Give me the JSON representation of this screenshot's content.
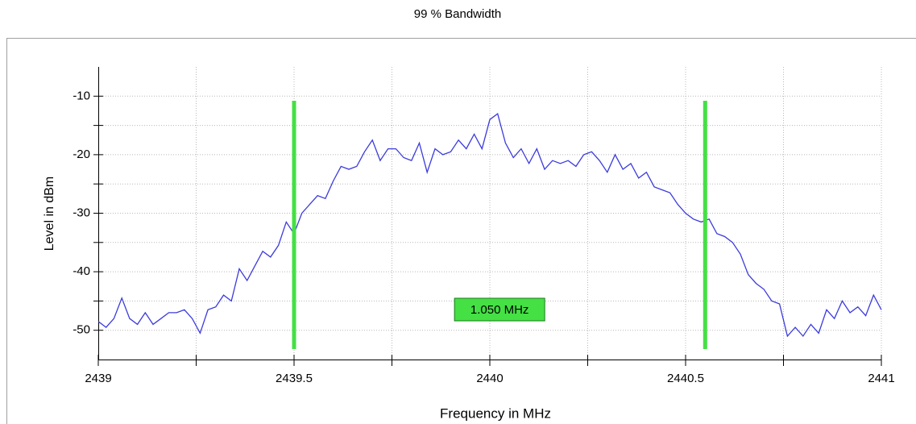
{
  "chart_data": {
    "type": "line",
    "title": "99 % Bandwidth",
    "xlabel": "Frequency in MHz",
    "ylabel": "Level in dBm",
    "xlim": [
      2439,
      2441
    ],
    "ylim": [
      -55,
      -5
    ],
    "xticks": [
      2439,
      2439.5,
      2440,
      2440.5,
      2441
    ],
    "xminorticks": [
      2439.25,
      2439.75,
      2440.25,
      2440.75
    ],
    "yticks": [
      -50,
      -40,
      -30,
      -20,
      -10
    ],
    "yminorticks": [
      -45,
      -35,
      -25,
      -15
    ],
    "grid": true,
    "markers": [
      2439.5,
      2440.55
    ],
    "marker_color": "#44e044",
    "annotation": "1.050 MHz",
    "x": [
      2439.0,
      2439.02,
      2439.04,
      2439.06,
      2439.08,
      2439.1,
      2439.12,
      2439.14,
      2439.16,
      2439.18,
      2439.2,
      2439.22,
      2439.24,
      2439.26,
      2439.28,
      2439.3,
      2439.32,
      2439.34,
      2439.36,
      2439.38,
      2439.4,
      2439.42,
      2439.44,
      2439.46,
      2439.48,
      2439.5,
      2439.52,
      2439.54,
      2439.56,
      2439.58,
      2439.6,
      2439.62,
      2439.64,
      2439.66,
      2439.68,
      2439.7,
      2439.72,
      2439.74,
      2439.76,
      2439.78,
      2439.8,
      2439.82,
      2439.84,
      2439.86,
      2439.88,
      2439.9,
      2439.92,
      2439.94,
      2439.96,
      2439.98,
      2440.0,
      2440.02,
      2440.04,
      2440.06,
      2440.08,
      2440.1,
      2440.12,
      2440.14,
      2440.16,
      2440.18,
      2440.2,
      2440.22,
      2440.24,
      2440.26,
      2440.28,
      2440.3,
      2440.32,
      2440.34,
      2440.36,
      2440.38,
      2440.4,
      2440.42,
      2440.44,
      2440.46,
      2440.48,
      2440.5,
      2440.52,
      2440.54,
      2440.56,
      2440.58,
      2440.6,
      2440.62,
      2440.64,
      2440.66,
      2440.68,
      2440.7,
      2440.72,
      2440.74,
      2440.76,
      2440.78,
      2440.8,
      2440.82,
      2440.84,
      2440.86,
      2440.88,
      2440.9,
      2440.92,
      2440.94,
      2440.96,
      2440.98,
      2441.0
    ],
    "series": [
      {
        "color": "#3b3bdc",
        "values": [
          -48.5,
          -49.5,
          -48,
          -44.5,
          -48,
          -49,
          -47,
          -49,
          -48,
          -47,
          -47,
          -46.5,
          -48,
          -50.5,
          -46.5,
          -46,
          -44,
          -45,
          -39.5,
          -41.5,
          -39,
          -36.5,
          -37.5,
          -35.5,
          -31.5,
          -33.5,
          -30,
          -28.5,
          -27,
          -27.5,
          -24.5,
          -22,
          -22.5,
          -22,
          -19.5,
          -17.5,
          -21,
          -19,
          -19,
          -20.5,
          -21,
          -18,
          -23,
          -19,
          -20,
          -19.5,
          -17.5,
          -19,
          -16.5,
          -19,
          -14,
          -13,
          -18,
          -20.5,
          -19,
          -21.5,
          -19,
          -22.5,
          -21,
          -21.5,
          -21,
          -22,
          -20,
          -19.5,
          -21,
          -23,
          -20,
          -22.5,
          -21.5,
          -24,
          -23,
          -25.5,
          -26,
          -26.5,
          -28.5,
          -30,
          -31,
          -31.5,
          -31,
          -33.5,
          -34,
          -35,
          -37,
          -40.5,
          -42,
          -43,
          -45,
          -45.5,
          -51,
          -49.5,
          -51,
          -49,
          -50.5,
          -46.5,
          -48,
          -45,
          -47,
          -46,
          -47.5,
          -44,
          -46.5
        ]
      }
    ]
  }
}
